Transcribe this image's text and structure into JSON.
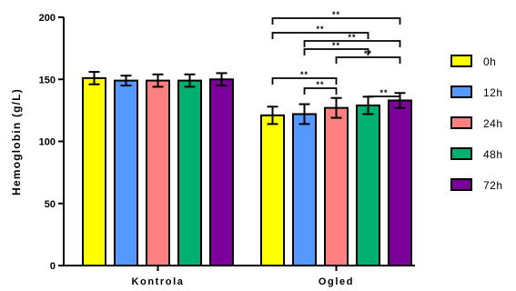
{
  "chart_data": {
    "type": "bar",
    "ylabel": "Hemoglobin (g/L)",
    "ylim": [
      0,
      200
    ],
    "yticks": [
      "0",
      "50",
      "100",
      "150",
      "200"
    ],
    "categories": [
      "Kontrola",
      "Ogled"
    ],
    "series": [
      {
        "name": "0h",
        "color": "#ffff00",
        "values": [
          151,
          121
        ],
        "errors": [
          5,
          7
        ]
      },
      {
        "name": "12h",
        "color": "#5599ff",
        "values": [
          149,
          122
        ],
        "errors": [
          4,
          8
        ]
      },
      {
        "name": "24h",
        "color": "#ff8080",
        "values": [
          149,
          127
        ],
        "errors": [
          5,
          8
        ]
      },
      {
        "name": "48h",
        "color": "#00b070",
        "values": [
          149,
          129
        ],
        "errors": [
          5,
          7
        ]
      },
      {
        "name": "72h",
        "color": "#7a0099",
        "values": [
          150,
          133
        ],
        "errors": [
          5,
          6
        ]
      }
    ],
    "legend_position": "right",
    "significance": [
      {
        "group": "Ogled",
        "from": "0h",
        "to": "72h",
        "label": "**"
      },
      {
        "group": "Ogled",
        "from": "0h",
        "to": "48h",
        "label": "**"
      },
      {
        "group": "Ogled",
        "from": "12h",
        "to": "72h",
        "label": "**"
      },
      {
        "group": "Ogled",
        "from": "12h",
        "to": "48h",
        "label": "**"
      },
      {
        "group": "Ogled",
        "from": "24h",
        "to": "72h",
        "label": "**"
      },
      {
        "group": "Ogled",
        "from": "0h",
        "to": "24h",
        "label": "**"
      },
      {
        "group": "Ogled",
        "from": "12h",
        "to": "24h",
        "label": "**"
      },
      {
        "group": "Ogled",
        "from": "48h",
        "to": "72h",
        "label": "**"
      }
    ]
  }
}
